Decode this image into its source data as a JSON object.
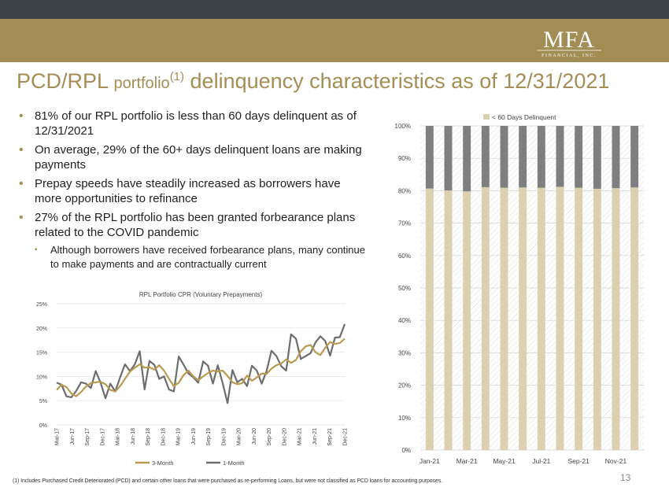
{
  "header": {
    "logo_text": "MFA",
    "logo_sub": "FINANCIAL, INC.",
    "title_part1": "PCD/RPL ",
    "title_part2": "portfolio",
    "title_sup": "(1)",
    "title_part3": " delinquency characteristics as of 12/31/2021"
  },
  "bullets": [
    "81% of our RPL portfolio is less than 60 days delinquent as of 12/31/2021",
    "On average, 29% of the 60+ days delinquent loans are making payments",
    "Prepay speeds have steadily increased as borrowers have more opportunities to refinance",
    "27% of the RPL portfolio has been granted forbearance plans related to the COVID pandemic"
  ],
  "sub_bullet": "Although borrowers have received forbearance plans, many continue to make payments and are contractually current",
  "footnote": "(1) Includes Purchased Credit Deteriorated (PCD) and certain other loans that were purchased as re-performing Loans, but were not classified as PCD loans for accounting purposes.",
  "page_number": "13",
  "colors": {
    "gold": "#a58e55",
    "dark": "#3d4249",
    "bar_light": "#ddd0b1",
    "bar_dark": "#7f7f7f",
    "line_3m": "#b99b50",
    "line_1m": "#6d6d6d"
  },
  "chart_data": [
    {
      "type": "line",
      "title": "RPL Portfolio CPR (Voluntary Prepayments)",
      "x_ticks": [
        "Mar-17",
        "Jun-17",
        "Sep-17",
        "Dec-17",
        "Mar-18",
        "Jun-18",
        "Sep-18",
        "Dec-18",
        "Mar-19",
        "Jun-19",
        "Sep-19",
        "Dec-19",
        "Mar-20",
        "Jun-20",
        "Sep-20",
        "Dec-20",
        "Mar-21",
        "Jun-21",
        "Sep-21",
        "Dec-21"
      ],
      "x_start": "Mar-17",
      "x_end": "Dec-21",
      "ylim": [
        0,
        25
      ],
      "y_ticks": [
        "0%",
        "5%",
        "10%",
        "15%",
        "20%",
        "25%"
      ],
      "legend": "bottom",
      "series": [
        {
          "name": "3-Month",
          "values": [
            7.2,
            8.3,
            7.8,
            6.5,
            5.9,
            6.8,
            7.9,
            8.6,
            8.8,
            8.9,
            8.4,
            7.2,
            6.9,
            8.0,
            9.5,
            11.0,
            11.8,
            12.5,
            11.8,
            11.9,
            11.4,
            12.3,
            11.2,
            9.5,
            8.0,
            8.7,
            10.3,
            11.2,
            10.0,
            9.2,
            10.0,
            10.7,
            11.2,
            11.0,
            11.2,
            10.1,
            8.8,
            8.4,
            8.6,
            10.2,
            9.1,
            9.8,
            10.6,
            10.5,
            11.6,
            12.3,
            12.7,
            13.5,
            12.8,
            13.4,
            15.2,
            16.2,
            16.5,
            15.0,
            14.4,
            15.9,
            17.1,
            16.7,
            16.9,
            17.8
          ]
        },
        {
          "name": "1-Month",
          "values": [
            8.7,
            8.3,
            5.9,
            5.7,
            7.0,
            8.8,
            8.5,
            7.6,
            11.1,
            8.7,
            5.5,
            8.5,
            6.9,
            9.8,
            12.5,
            11.1,
            12.5,
            15.2,
            7.3,
            13.2,
            12.4,
            9.5,
            10.0,
            7.3,
            6.9,
            14.1,
            12.4,
            10.6,
            9.8,
            8.7,
            13.1,
            12.2,
            8.5,
            12.3,
            8.6,
            4.5,
            11.3,
            8.8,
            9.5,
            8.0,
            12.2,
            11.2,
            8.5,
            11.1,
            15.3,
            14.2,
            12.1,
            11.2,
            18.7,
            17.8,
            13.6,
            14.2,
            14.8,
            17.0,
            18.3,
            17.3,
            14.3,
            18.0,
            18.1,
            20.8
          ]
        }
      ]
    },
    {
      "type": "bar",
      "stacked": true,
      "categories": [
        "Jan-21",
        "Feb-21",
        "Mar-21",
        "Apr-21",
        "May-21",
        "Jun-21",
        "Jul-21",
        "Aug-21",
        "Sep-21",
        "Oct-21",
        "Nov-21",
        "Dec-21"
      ],
      "x_tick_labels": [
        "Jan-21",
        "",
        "Mar-21",
        "",
        "May-21",
        "",
        "Jul-21",
        "",
        "Sep-21",
        "",
        "Nov-21",
        ""
      ],
      "ylim": [
        0,
        100
      ],
      "y_ticks": [
        "0%",
        "10%",
        "20%",
        "30%",
        "40%",
        "50%",
        "60%",
        "70%",
        "80%",
        "90%",
        "100%"
      ],
      "legend": "top",
      "series": [
        {
          "name": "< 60 Days Delinquent",
          "values": [
            80.7,
            80.1,
            79.8,
            81.1,
            80.9,
            81.0,
            80.9,
            81.2,
            80.9,
            80.6,
            80.8,
            81.0
          ]
        },
        {
          "values": [
            19.3,
            19.9,
            20.2,
            18.9,
            19.1,
            19.0,
            19.1,
            18.8,
            19.1,
            19.4,
            19.2,
            19.0
          ]
        }
      ]
    }
  ]
}
